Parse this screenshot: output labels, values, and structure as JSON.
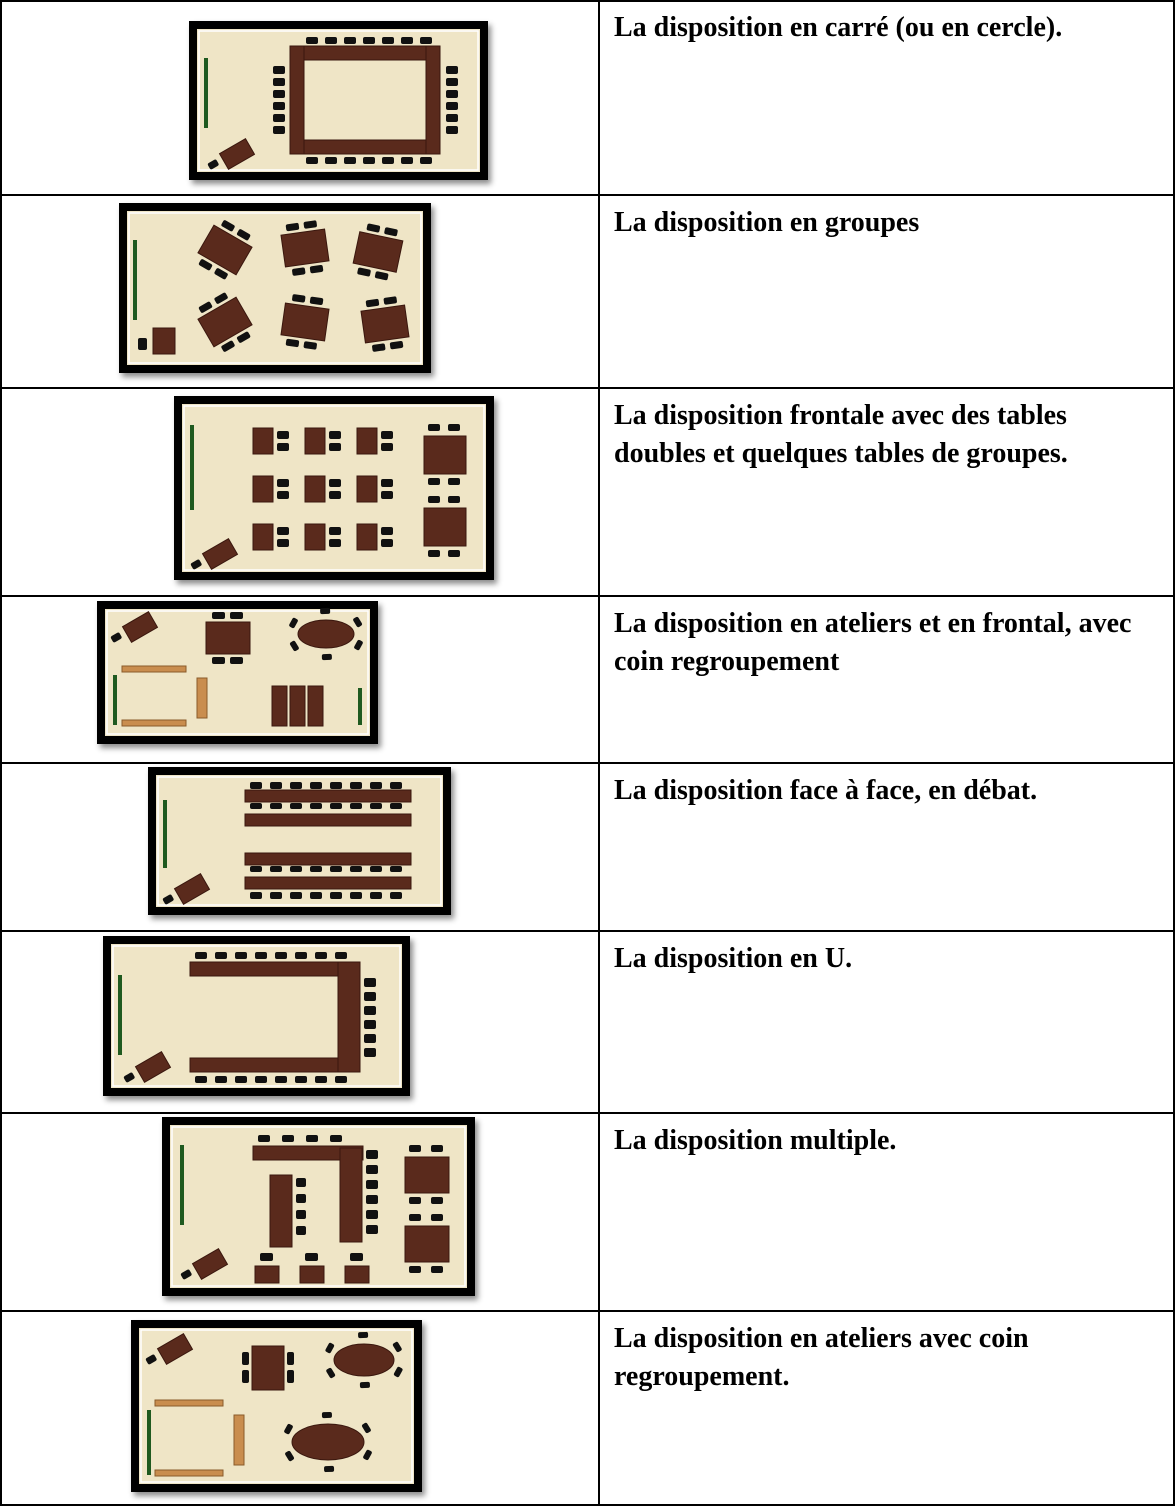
{
  "table": {
    "rows": [
      {
        "text": "La disposition en carré (ou en cercle)."
      },
      {
        "text": "La disposition en groupes"
      },
      {
        "text": "La disposition frontale avec des tables doubles et quelques tables de groupes."
      },
      {
        "text": "La disposition en ateliers et en frontal, avec coin regroupement"
      },
      {
        "text": "La disposition face à face, en débat."
      },
      {
        "text": "La disposition en U."
      },
      {
        "text": "La disposition multiple."
      },
      {
        "text": "La disposition en ateliers avec coin regroupement."
      }
    ]
  }
}
